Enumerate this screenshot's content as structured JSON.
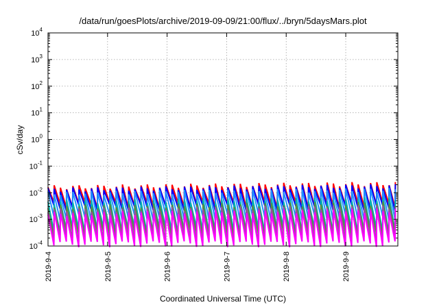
{
  "chart_data": {
    "type": "line",
    "title": "/data/run/goesPlots/archive/2019-09-09/21:00/flux/../bryn/5daysMars.plot",
    "xlabel": "Coordinated Universal Time (UTC)",
    "ylabel": "cSv/day",
    "yscale": "log",
    "ylim": [
      0.0001,
      10000
    ],
    "xlim": [
      "2019-09-04T00:00",
      "2019-09-09T21:00"
    ],
    "grid": true,
    "x_ticks": [
      "2019-9-4",
      "2019-9-5",
      "2019-9-6",
      "2019-9-7",
      "2019-9-8",
      "2019-9-9"
    ],
    "y_ticks": [
      {
        "base": "10",
        "exp": "-4"
      },
      {
        "base": "10",
        "exp": "-3"
      },
      {
        "base": "10",
        "exp": "-2"
      },
      {
        "base": "10",
        "exp": "-1"
      },
      {
        "base": "10",
        "exp": "0"
      },
      {
        "base": "10",
        "exp": "1"
      },
      {
        "base": "10",
        "exp": "2"
      },
      {
        "base": "10",
        "exp": "3"
      },
      {
        "base": "10",
        "exp": "4"
      }
    ],
    "pattern": "sawtooth",
    "sawtooth_period_hours": 2.5,
    "series": [
      {
        "color": "#ff0000",
        "peak_start": 0.016,
        "peak_end": 0.022,
        "trough": 0.0035
      },
      {
        "color": "#0000ff",
        "peak_start": 0.013,
        "peak_end": 0.018,
        "trough": 0.0028
      },
      {
        "color": "#2090ff",
        "peak_start": 0.0095,
        "peak_end": 0.013,
        "trough": 0.0012
      },
      {
        "color": "#00b0b0",
        "peak_start": 0.0045,
        "peak_end": 0.006,
        "trough": 0.0004
      },
      {
        "color": "#5a8a40",
        "peak_start": 0.003,
        "peak_end": 0.004,
        "trough": 0.0003
      },
      {
        "color": "#9a50a0",
        "peak_start": 0.0022,
        "peak_end": 0.003,
        "trough": 0.00018
      },
      {
        "color": "#ff00ff",
        "peak_start": 0.0016,
        "peak_end": 0.0022,
        "trough": 0.00012
      }
    ]
  }
}
